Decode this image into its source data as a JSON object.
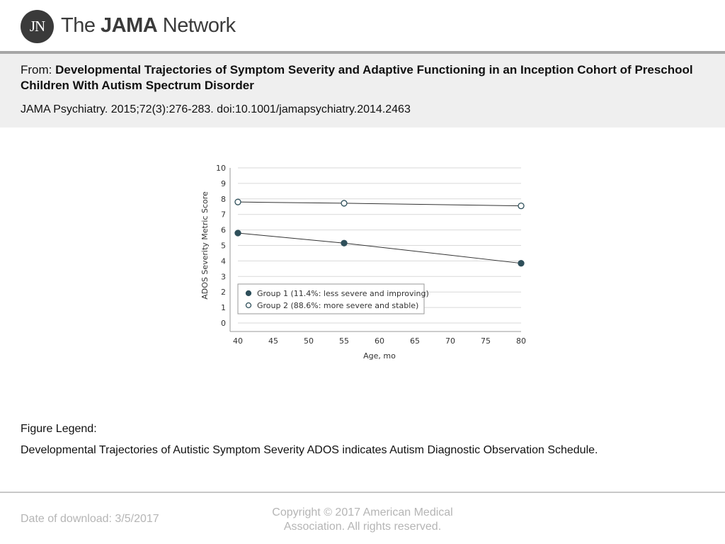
{
  "brand": {
    "logo_mark": "JN",
    "name_light_1": "The ",
    "name_bold": "JAMA",
    "name_light_2": " Network"
  },
  "article": {
    "from_label": "From:",
    "title": "Developmental Trajectories of Symptom Severity and Adaptive Functioning in an Inception Cohort of Preschool Children With Autism Spectrum Disorder",
    "citation": "JAMA Psychiatry. 2015;72(3):276-283. doi:10.1001/jamapsychiatry.2014.2463"
  },
  "figure_legend": {
    "label": "Figure Legend:",
    "text": "Developmental Trajectories of Autistic Symptom Severity ADOS indicates Autism Diagnostic Observation Schedule."
  },
  "footer": {
    "download": "Date of download:  3/5/2017",
    "copyright_line1": "Copyright © 2017 American Medical",
    "copyright_line2": "Association. All rights reserved."
  },
  "chart_data": {
    "type": "line",
    "title": "",
    "xlabel": "Age, mo",
    "ylabel": "ADOS Severity Metric Score",
    "x": [
      40,
      55,
      80
    ],
    "xlim": [
      40,
      80
    ],
    "ylim": [
      0,
      10
    ],
    "xticks": [
      40,
      45,
      50,
      55,
      60,
      65,
      70,
      75,
      80
    ],
    "yticks": [
      0,
      1,
      2,
      3,
      4,
      5,
      6,
      7,
      8,
      9,
      10
    ],
    "grid": true,
    "legend_position": "bottom-left",
    "series": [
      {
        "name": "Group 1 (11.4%: less severe and improving)",
        "values": [
          5.8,
          5.15,
          3.85
        ],
        "marker": "filled",
        "color": "#2e4f5a"
      },
      {
        "name": "Group 2 (88.6%: more severe and stable)",
        "values": [
          7.8,
          7.72,
          7.55
        ],
        "marker": "open",
        "color": "#2e4f5a"
      }
    ]
  }
}
